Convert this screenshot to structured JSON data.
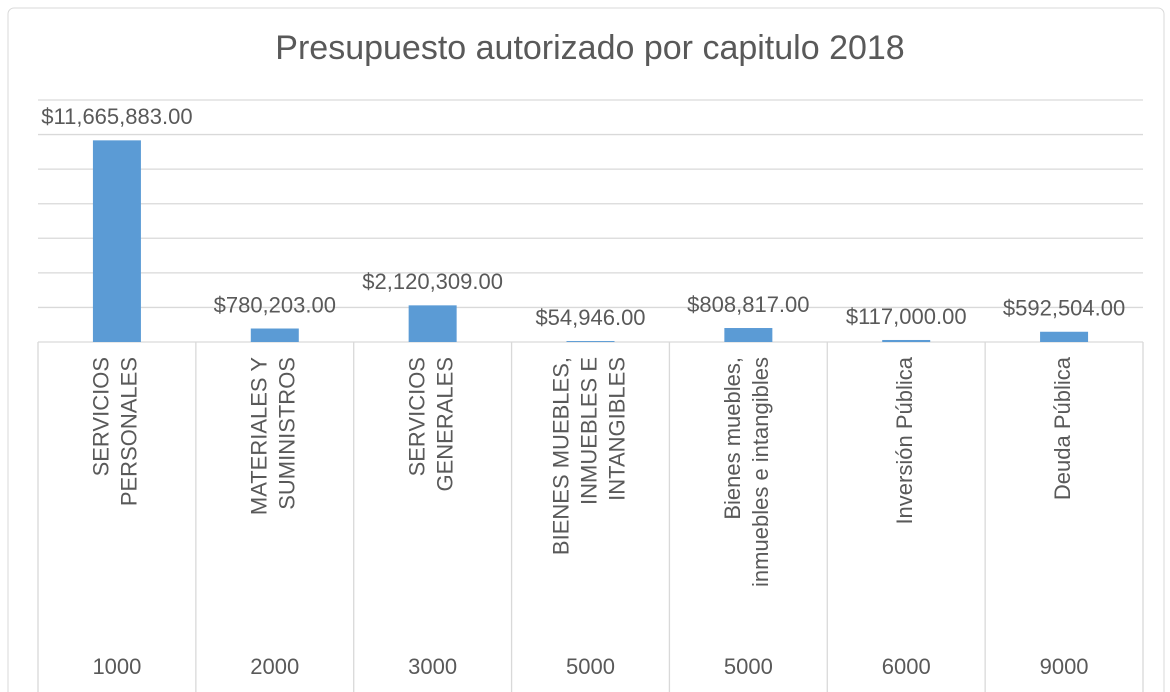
{
  "chart_data": {
    "type": "bar",
    "title": "Presupuesto autorizado por capitulo 2018",
    "categories": [
      [
        "SERVICIOS",
        "PERSONALES"
      ],
      [
        "MATERIALES Y",
        "SUMINISTROS"
      ],
      [
        "SERVICIOS",
        "GENERALES"
      ],
      [
        "BIENES MUEBLES,",
        "INMUEBLES E",
        "INTANGIBLES"
      ],
      [
        "Bienes muebles,",
        "inmuebles e intangibles"
      ],
      [
        "Inversión Pública"
      ],
      [
        "Deuda Pública"
      ]
    ],
    "groups": [
      "1000",
      "2000",
      "3000",
      "5000",
      "5000",
      "6000",
      "9000"
    ],
    "values": [
      11665883,
      780203,
      2120309,
      54946,
      808817,
      117000,
      592504
    ],
    "value_labels": [
      "$11,665,883.00",
      "$780,203.00",
      "$2,120,309.00",
      "$54,946.00",
      "$808,817.00",
      "$117,000.00",
      "$592,504.00"
    ],
    "color": "#5b9bd5",
    "ylim": [
      0,
      14000000
    ],
    "yticks": [
      0,
      2000000,
      4000000,
      6000000,
      8000000,
      10000000,
      12000000,
      14000000
    ],
    "grid": true
  }
}
